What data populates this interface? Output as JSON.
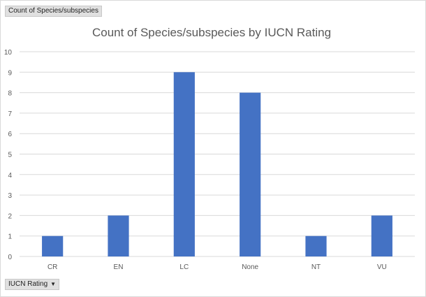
{
  "value_field_button": "Count of Species/subspecies",
  "axis_field_button": {
    "label": "IUCN Rating",
    "icon": "dropdown-arrow-icon"
  },
  "colors": {
    "bar": "#4472c4",
    "grid": "#d9d9d9",
    "text": "#595959"
  },
  "chart_data": {
    "type": "bar",
    "title": "Count of Species/subspecies by IUCN Rating",
    "xlabel": "",
    "ylabel": "",
    "categories": [
      "CR",
      "EN",
      "LC",
      "None",
      "NT",
      "VU"
    ],
    "values": [
      1,
      2,
      9,
      8,
      1,
      2
    ],
    "ylim": [
      0,
      10
    ],
    "yticks": [
      "0",
      "1",
      "2",
      "3",
      "4",
      "5",
      "6",
      "7",
      "8",
      "9",
      "10"
    ],
    "grid": true,
    "legend": "none"
  }
}
